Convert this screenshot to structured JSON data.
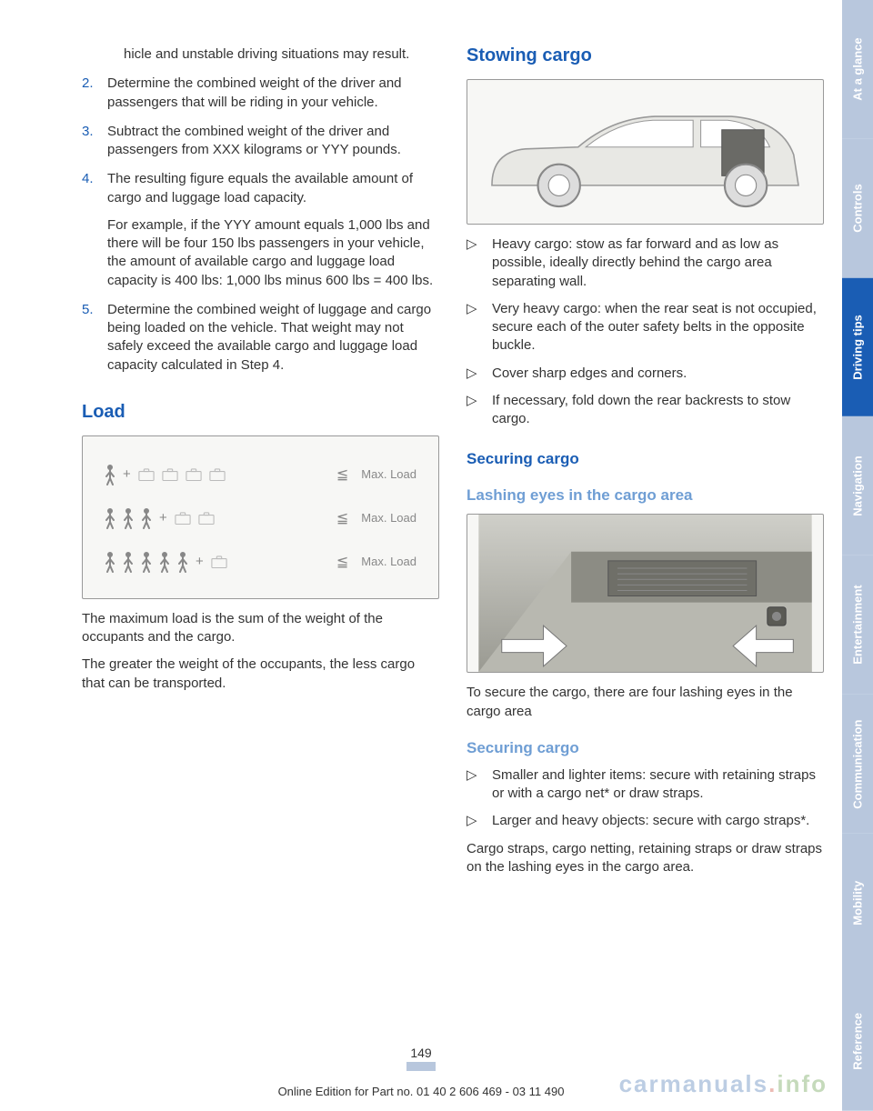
{
  "tabs": [
    {
      "label": "At a glance",
      "active": false
    },
    {
      "label": "Controls",
      "active": false
    },
    {
      "label": "Driving tips",
      "active": true
    },
    {
      "label": "Navigation",
      "active": false
    },
    {
      "label": "Entertainment",
      "active": false
    },
    {
      "label": "Communication",
      "active": false
    },
    {
      "label": "Mobility",
      "active": false
    },
    {
      "label": "Reference",
      "active": false
    }
  ],
  "left": {
    "cont_text": "hicle and unstable driving situations may result.",
    "items": [
      {
        "n": "2.",
        "t": "Determine the combined weight of the driver and passengers that will be riding in your vehicle."
      },
      {
        "n": "3.",
        "t": "Subtract the combined weight of the driver and passengers from XXX kilograms or YYY pounds."
      },
      {
        "n": "4.",
        "t": "The resulting figure equals the available amount of cargo and luggage load capacity.",
        "extra": "For example, if the YYY amount equals 1,000 lbs and there will be four 150 lbs passengers in your vehicle, the amount of available cargo and luggage load capacity is 400 lbs: 1,000 lbs minus 600 lbs = 400 lbs."
      },
      {
        "n": "5.",
        "t": "Determine the combined weight of luggage and cargo being loaded on the vehicle. That weight may not safely exceed the available cargo and luggage load capacity calculated in Step 4."
      }
    ],
    "h2_load": "Load",
    "load_rows": [
      {
        "persons": 1,
        "bags": 4,
        "label": "Max. Load"
      },
      {
        "persons": 3,
        "bags": 2,
        "label": "Max. Load"
      },
      {
        "persons": 5,
        "bags": 1,
        "label": "Max. Load"
      }
    ],
    "p1": "The maximum load is the sum of the weight of the occupants and the cargo.",
    "p2": "The greater the weight of the occupants, the less cargo that can be transported."
  },
  "right": {
    "h2_stowing": "Stowing cargo",
    "bullets1": [
      "Heavy cargo: stow as far forward and as low as possible, ideally directly behind the cargo area separating wall.",
      "Very heavy cargo: when the rear seat is not occupied, secure each of the outer safety belts in the opposite buckle.",
      "Cover sharp edges and corners.",
      "If necessary, fold down the rear backrests to stow cargo."
    ],
    "h3_securing": "Securing cargo",
    "h4_lashing": "Lashing eyes in the cargo area",
    "p_lashing": "To secure the cargo, there are four lashing eyes in the cargo area",
    "h4_securing2": "Securing cargo",
    "bullets2": [
      "Smaller and lighter items: secure with retaining straps or with a cargo net* or draw straps.",
      "Larger and heavy objects: secure with cargo straps*."
    ],
    "p_final": "Cargo straps, cargo netting, retaining straps or draw straps on the lashing eyes in the cargo area."
  },
  "page_number": "149",
  "footer": "Online Edition for Part no. 01 40 2 606 469 - 03 11 490",
  "watermark": {
    "part1": "carmanuals",
    "part2": ".",
    "part3": "info"
  },
  "colors": {
    "heading": "#1a5db4",
    "subheading": "#6f9ed4",
    "tab_inactive": "#b8c7dd",
    "tab_active": "#1a5db4"
  }
}
